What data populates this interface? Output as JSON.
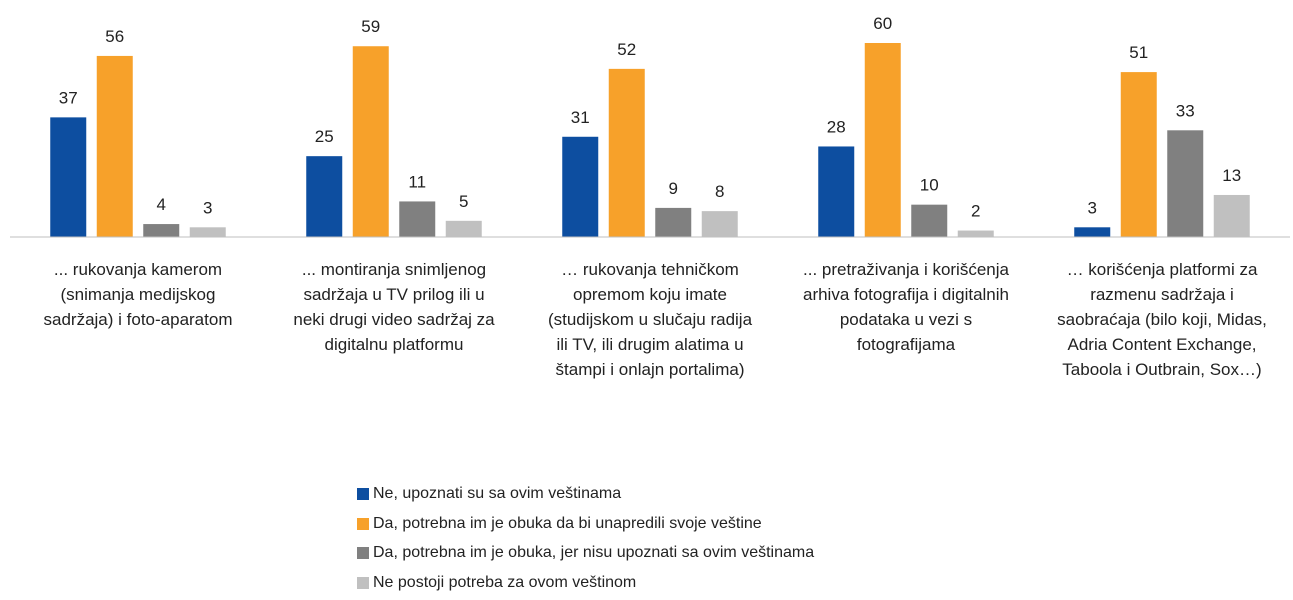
{
  "chart_data": {
    "type": "bar",
    "categories": [
      "... rukovanja kamerom (snimanja medijskog sadržaja) i foto-aparatom",
      "... montiranja snimljenog sadržaja u TV prilog ili u neki drugi video sadržaj za digitalnu platformu",
      "… rukovanja tehničkom opremom koju imate (studijskom u slučaju radija ili TV, ili drugim alatima u štampi i onlajn portalima)",
      "... pretraživanja i korišćenja arhiva fotografija i digitalnih podataka u vezi s fotografijama",
      "… korišćenja platformi za razmenu sadržaja i saobraćaja (bilo koji, Midas, Adria Content Exchange, Taboola i Outbrain, Sox…)"
    ],
    "series": [
      {
        "name": "Ne, upoznati su sa ovim veštinama",
        "color": "#0d4ea0",
        "values": [
          37,
          25,
          31,
          28,
          3
        ]
      },
      {
        "name": "Da, potrebna im je obuka da bi unapredili svoje veštine",
        "color": "#f7a12a",
        "values": [
          56,
          59,
          52,
          60,
          51
        ]
      },
      {
        "name": "Da, potrebna im je obuka, jer nisu upoznati sa ovim veštinama",
        "color": "#808080",
        "values": [
          4,
          11,
          9,
          10,
          33
        ]
      },
      {
        "name": "Ne postoji potreba za ovom veštinom",
        "color": "#c0c0c0",
        "values": [
          3,
          5,
          8,
          2,
          13
        ]
      }
    ]
  }
}
